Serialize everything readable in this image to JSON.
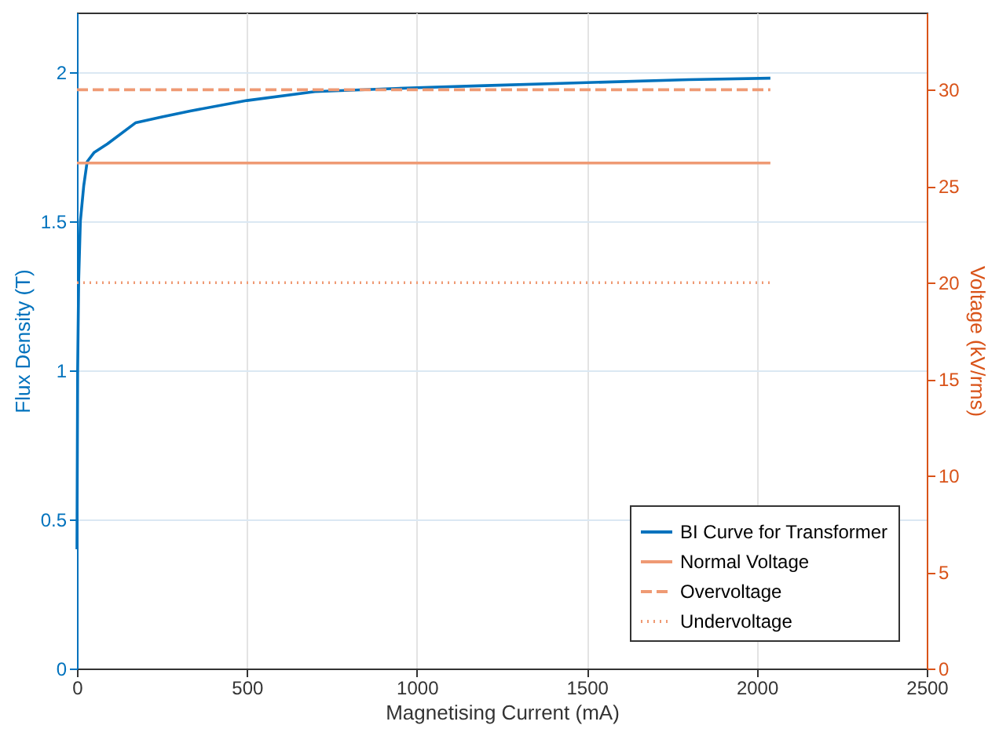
{
  "chart_data": {
    "type": "line",
    "xlabel": "Magnetising Current (mA)",
    "ylabel": "Flux Density (T)",
    "y2label": "Voltage (kV/rms)",
    "xlim": [
      0,
      2500
    ],
    "xticks": [
      0,
      500,
      1000,
      1500,
      2000,
      2500
    ],
    "ylim": [
      0,
      2.2
    ],
    "yticks": [
      0,
      0.5,
      1,
      1.5,
      2
    ],
    "y2lim": [
      0,
      34
    ],
    "y2ticks": [
      0,
      5,
      10,
      15,
      20,
      25,
      30
    ],
    "grid": true,
    "legend": "bottom right",
    "marker": "none",
    "series": [
      {
        "name": "BI Curve for Transformer",
        "color": "#0072bd",
        "line_style": "solid",
        "x": [
          0,
          2,
          5,
          10,
          20,
          30,
          50,
          90,
          172,
          250,
          333,
          500,
          700,
          1000,
          1200,
          1500,
          1800,
          2040
        ],
        "values": [
          0.4,
          1.0,
          1.3,
          1.5,
          1.62,
          1.7,
          1.73,
          1.76,
          1.83,
          1.85,
          1.87,
          1.905,
          1.935,
          1.948,
          1.955,
          1.965,
          1.975,
          1.98
        ]
      },
      {
        "name": "Normal Voltage",
        "color": "#ef9a74",
        "line_style": "solid",
        "axis": "y2",
        "x": [
          0,
          2040
        ],
        "values": [
          26.2,
          26.2
        ]
      },
      {
        "name": "Overvoltage",
        "color": "#ef9a74",
        "line_style": "dashed",
        "axis": "y2",
        "x": [
          0,
          2040
        ],
        "values": [
          30,
          30
        ]
      },
      {
        "name": "Undervoltage",
        "color": "#ef9a74",
        "line_style": "dotted",
        "axis": "y2",
        "x": [
          0,
          2040
        ],
        "values": [
          20,
          20
        ]
      }
    ]
  }
}
